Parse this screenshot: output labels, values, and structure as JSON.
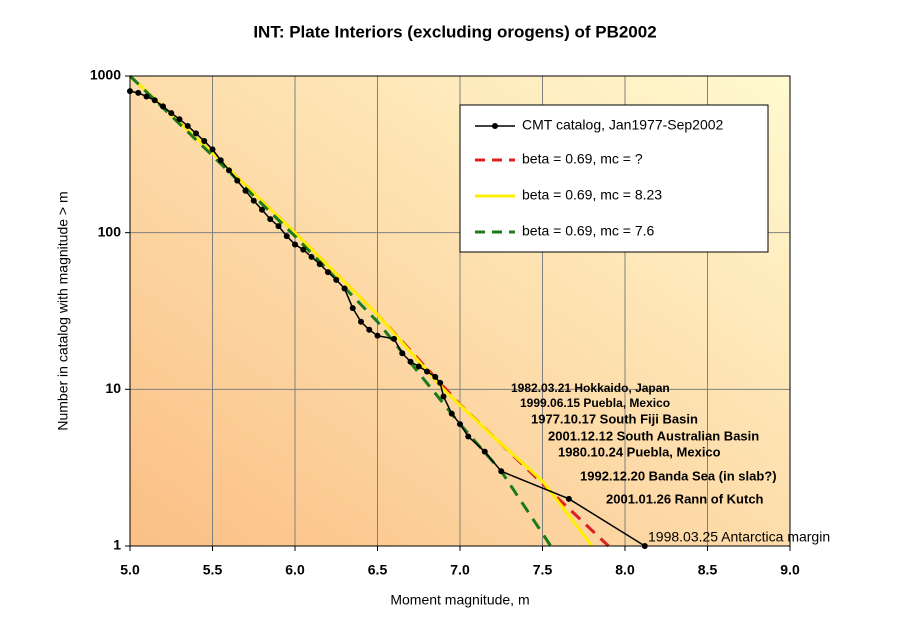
{
  "chart_data": {
    "type": "line",
    "title": "INT: Plate Interiors (excluding orogens) of PB2002",
    "xlabel": "Moment magnitude, m",
    "ylabel": "Number in catalog with magnitude > m",
    "xlim": [
      5.0,
      9.0
    ],
    "ylim": [
      1,
      1000
    ],
    "ylog": true,
    "grid": true,
    "xticks": [
      {
        "value": 5.0,
        "label": "5.0"
      },
      5.5,
      {
        "value": 6.0,
        "label": "6.0"
      },
      6.5,
      {
        "value": 7.0,
        "label": "7.0"
      },
      7.5,
      {
        "value": 8.0,
        "label": "8.0"
      },
      8.5,
      {
        "value": 9.0,
        "label": "9.0"
      }
    ],
    "yticks": [
      1,
      10,
      100,
      1000
    ],
    "series": [
      {
        "name": "CMT catalog, Jan1977-Sep2002",
        "color": "#000000",
        "style": "solid",
        "markers": true,
        "x": [
          5.0,
          5.05,
          5.1,
          5.15,
          5.2,
          5.25,
          5.3,
          5.35,
          5.4,
          5.45,
          5.5,
          5.55,
          5.6,
          5.65,
          5.7,
          5.75,
          5.8,
          5.85,
          5.9,
          5.95,
          6.0,
          6.05,
          6.1,
          6.15,
          6.2,
          6.25,
          6.3,
          6.35,
          6.4,
          6.45,
          6.5,
          6.6,
          6.65,
          6.7,
          6.75,
          6.8,
          6.85,
          6.88,
          6.9,
          6.95,
          7.0,
          7.05,
          7.15,
          7.25,
          7.66,
          8.12
        ],
        "values": [
          800,
          780,
          740,
          700,
          640,
          580,
          530,
          480,
          430,
          385,
          340,
          290,
          250,
          215,
          185,
          160,
          140,
          122,
          110,
          95,
          84,
          78,
          70,
          63,
          56,
          50,
          44,
          33,
          27,
          24,
          22,
          21,
          17,
          15,
          14,
          13,
          12,
          11,
          9,
          7,
          6,
          5,
          4,
          3,
          2,
          1
        ]
      },
      {
        "name": "beta = 0.69, mc = ?",
        "color": "#e02020",
        "style": "dashed",
        "markers": false,
        "x": [
          5.0,
          5.5,
          6.0,
          6.5,
          7.0,
          7.5,
          7.9
        ],
        "values": [
          1000,
          320,
          100,
          30,
          8,
          2.5,
          1
        ]
      },
      {
        "name": "beta = 0.69, mc = 8.23",
        "color": "#ffee00",
        "style": "solid",
        "markers": false,
        "x": [
          5.0,
          5.5,
          6.0,
          6.5,
          6.9,
          7.2,
          7.5,
          7.8
        ],
        "values": [
          1000,
          320,
          100,
          30,
          10,
          5,
          2.6,
          1
        ]
      },
      {
        "name": "beta = 0.69, mc = 7.6",
        "color": "#1a7a1a",
        "style": "dashed",
        "markers": false,
        "x": [
          5.0,
          5.5,
          6.0,
          6.5,
          7.0,
          7.25,
          7.55
        ],
        "values": [
          1000,
          310,
          95,
          27,
          6,
          3,
          1
        ]
      }
    ],
    "annotations": [
      "1982.03.21 Hokkaido, Japan",
      "1999.06.15 Puebla, Mexico",
      "1977.10.17 South Fiji Basin",
      "2001.12.12 South Australian Basin",
      "1980.10.24 Puebla, Mexico",
      "1992.12.20 Banda Sea (in slab?)",
      "2001.01.26 Rann of Kutch",
      "1998.03.25 Antarctica margin"
    ]
  }
}
